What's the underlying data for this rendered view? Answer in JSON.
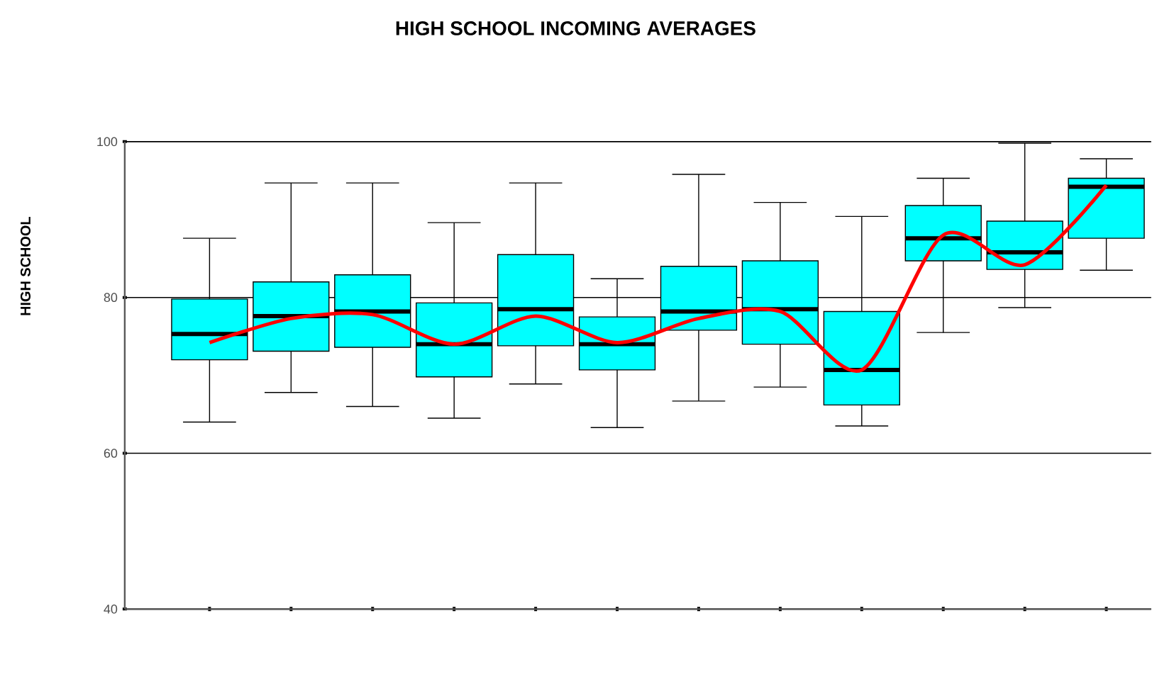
{
  "chart_data": {
    "type": "box",
    "title": "HIGH SCHOOL INCOMING AVERAGES",
    "ylabel": "HIGH SCHOOL",
    "categories": [
      null,
      null,
      null,
      null,
      null,
      null,
      null,
      null,
      null,
      null,
      null,
      null
    ],
    "color": "#00ffff",
    "boxes": [
      {
        "low": 64,
        "q1": 72,
        "median": 75.3,
        "q3": 79.8,
        "high": 87.6
      },
      {
        "low": 67.8,
        "q1": 73.1,
        "median": 77.6,
        "q3": 82,
        "high": 94.7
      },
      {
        "low": 66,
        "q1": 73.6,
        "median": 78.2,
        "q3": 82.9,
        "high": 94.7
      },
      {
        "low": 64.5,
        "q1": 69.8,
        "median": 74,
        "q3": 79.3,
        "high": 89.6
      },
      {
        "low": 68.9,
        "q1": 73.8,
        "median": 78.5,
        "q3": 85.5,
        "high": 94.7
      },
      {
        "low": 63.3,
        "q1": 70.7,
        "median": 74,
        "q3": 77.5,
        "high": 82.4
      },
      {
        "low": 66.7,
        "q1": 75.8,
        "median": 78.2,
        "q3": 84,
        "high": 95.8
      },
      {
        "low": 68.5,
        "q1": 74,
        "median": 78.5,
        "q3": 84.7,
        "high": 92.2
      },
      {
        "low": 63.5,
        "q1": 66.2,
        "median": 70.7,
        "q3": 78.2,
        "high": 90.4
      },
      {
        "low": 75.5,
        "q1": 84.7,
        "median": 87.6,
        "q3": 91.8,
        "high": 95.3
      },
      {
        "low": 78.7,
        "q1": 83.6,
        "median": 85.8,
        "q3": 89.8,
        "high": 99.8
      },
      {
        "low": 83.5,
        "q1": 87.6,
        "median": 94.2,
        "q3": 95.3,
        "high": 97.8
      }
    ],
    "series": [
      {
        "type": "line",
        "color": "#ff0000",
        "values": [
          74.2,
          77.3,
          77.8,
          74,
          77.6,
          74.2,
          77.3,
          78.2,
          70.7,
          88,
          84.2,
          94.4
        ]
      }
    ],
    "ylim": [
      40,
      100
    ],
    "yticks": [
      40,
      60,
      80,
      100
    ],
    "grid": "y",
    "tick_labels": "y"
  }
}
